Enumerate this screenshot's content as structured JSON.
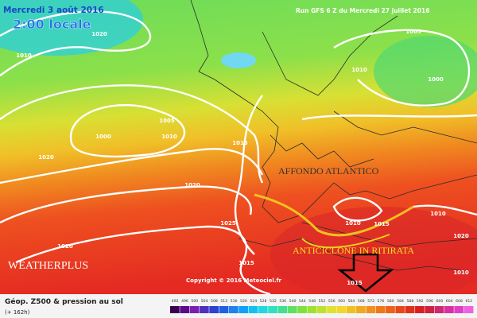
{
  "header": {
    "date": "Mercredi 3 août 2016",
    "time": "2:00 locale",
    "run": "Run GFS 6 Z du Mercredi 27 juillet 2016"
  },
  "isobar_labels": [
    "1020",
    "1010",
    "1005",
    "1000",
    "1010",
    "1005",
    "1010",
    "1000",
    "1015",
    "1020",
    "1020",
    "1025",
    "1020",
    "1015",
    "1010",
    "1015",
    "1010",
    "1020",
    "1015",
    "1010"
  ],
  "annotations": {
    "trough": "AFFONDO ATLANTICO",
    "ridge": "ANTICICLONE IN RITIRATA",
    "brand": "WEATHERPLUS",
    "copyright": "Copyright © 2016 Meteociel.fr"
  },
  "legend": {
    "title": "Géop. Z500 & pression au sol",
    "lead": "(+ 162h)",
    "labels": [
      "492",
      "496",
      "500",
      "504",
      "508",
      "512",
      "516",
      "520",
      "524",
      "528",
      "532",
      "536",
      "540",
      "544",
      "548",
      "552",
      "556",
      "560",
      "564",
      "568",
      "572",
      "576",
      "580",
      "584",
      "588",
      "592",
      "596",
      "600",
      "604",
      "608",
      "612"
    ],
    "colors": [
      "#3a0050",
      "#5a0a8a",
      "#7a20b0",
      "#5030c0",
      "#3040d0",
      "#2060e0",
      "#2080f0",
      "#10a0f8",
      "#10c0f0",
      "#20d8e0",
      "#30e0c0",
      "#40e090",
      "#60e060",
      "#80e040",
      "#a0e030",
      "#c0e030",
      "#e0e030",
      "#f0d828",
      "#f0c020",
      "#f0a820",
      "#f09020",
      "#f07818",
      "#f06018",
      "#e84818",
      "#e03018",
      "#d82020",
      "#d02040",
      "#d02870",
      "#d830a0",
      "#e040c8",
      "#f060e0"
    ]
  }
}
